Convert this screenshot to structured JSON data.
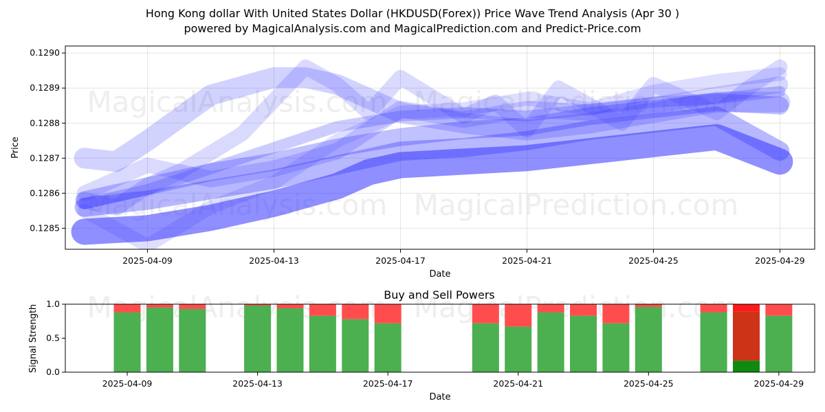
{
  "title_line1": "Hong Kong dollar With United States Dollar (HKDUSD(Forex)) Price Wave Trend Analysis (Apr 30 )",
  "title_line2": "powered by MagicalAnalysis.com and MagicalPrediction.com and Predict-Price.com",
  "watermarks": [
    "MagicalAnalysis.com",
    "MagicalPrediction.com"
  ],
  "chart_data": [
    {
      "type": "line",
      "name": "price-wave-trend",
      "xlabel": "Date",
      "ylabel": "Price",
      "xlim": [
        "2025-04-06.4",
        "2025-04-30.1"
      ],
      "ylim": [
        0.12844,
        0.12902
      ],
      "x_ticks": [
        "2025-04-09",
        "2025-04-13",
        "2025-04-17",
        "2025-04-21",
        "2025-04-25",
        "2025-04-29"
      ],
      "y_ticks": [
        "0.1285",
        "0.1286",
        "0.1287",
        "0.1288",
        "0.1289",
        "0.1290"
      ],
      "grid": true,
      "series": [
        {
          "name": "wave-1",
          "width": 38,
          "opacity": 0.55,
          "x": [
            "2025-04-07",
            "2025-04-09",
            "2025-04-11",
            "2025-04-13",
            "2025-04-15",
            "2025-04-16",
            "2025-04-17",
            "2025-04-19",
            "2025-04-21",
            "2025-04-23",
            "2025-04-25",
            "2025-04-27",
            "2025-04-29"
          ],
          "y": [
            0.12849,
            0.1285,
            0.12853,
            0.12857,
            0.12862,
            0.12866,
            0.12868,
            0.12869,
            0.1287,
            0.12872,
            0.12874,
            0.12876,
            0.12869
          ]
        },
        {
          "name": "wave-2",
          "width": 28,
          "opacity": 0.35,
          "x": [
            "2025-04-07",
            "2025-04-09",
            "2025-04-11",
            "2025-04-13",
            "2025-04-15",
            "2025-04-16",
            "2025-04-17",
            "2025-04-19",
            "2025-04-21",
            "2025-04-23",
            "2025-04-25",
            "2025-04-27",
            "2025-04-29"
          ],
          "y": [
            0.12856,
            0.12858,
            0.12861,
            0.12864,
            0.12868,
            0.1287,
            0.12872,
            0.12873,
            0.12875,
            0.12878,
            0.1288,
            0.12882,
            0.12872
          ]
        },
        {
          "name": "wave-3",
          "width": 26,
          "opacity": 0.3,
          "x": [
            "2025-04-07",
            "2025-04-09",
            "2025-04-11",
            "2025-04-13",
            "2025-04-15",
            "2025-04-17",
            "2025-04-19",
            "2025-04-21",
            "2025-04-23",
            "2025-04-25",
            "2025-04-27",
            "2025-04-29"
          ],
          "y": [
            0.12858,
            0.12862,
            0.12866,
            0.12869,
            0.12873,
            0.12876,
            0.12878,
            0.12879,
            0.12882,
            0.12884,
            0.12886,
            0.12885
          ]
        },
        {
          "name": "wave-4",
          "width": 30,
          "opacity": 0.22,
          "x": [
            "2025-04-07",
            "2025-04-08",
            "2025-04-09",
            "2025-04-11",
            "2025-04-13",
            "2025-04-14",
            "2025-04-15",
            "2025-04-16",
            "2025-04-17",
            "2025-04-19",
            "2025-04-21",
            "2025-04-23",
            "2025-04-25",
            "2025-04-27",
            "2025-04-29"
          ],
          "y": [
            0.1287,
            0.12869,
            0.12875,
            0.12888,
            0.12893,
            0.12893,
            0.12891,
            0.12887,
            0.12883,
            0.1288,
            0.12878,
            0.1288,
            0.12883,
            0.12886,
            0.12886
          ]
        },
        {
          "name": "wave-5",
          "width": 22,
          "opacity": 0.18,
          "x": [
            "2025-04-07",
            "2025-04-09",
            "2025-04-10",
            "2025-04-12",
            "2025-04-14",
            "2025-04-15",
            "2025-04-16",
            "2025-04-17",
            "2025-04-19",
            "2025-04-20",
            "2025-04-21",
            "2025-04-22",
            "2025-04-24",
            "2025-04-25",
            "2025-04-27",
            "2025-04-28",
            "2025-04-29"
          ],
          "y": [
            0.1286,
            0.12868,
            0.12866,
            0.12877,
            0.12896,
            0.12891,
            0.12883,
            0.12893,
            0.12882,
            0.12886,
            0.12878,
            0.1289,
            0.1288,
            0.12891,
            0.12883,
            0.1289,
            0.12896
          ]
        },
        {
          "name": "wave-6",
          "width": 20,
          "opacity": 0.16,
          "x": [
            "2025-04-07",
            "2025-04-09",
            "2025-04-11",
            "2025-04-13",
            "2025-04-15",
            "2025-04-17",
            "2025-04-19",
            "2025-04-21",
            "2025-04-23",
            "2025-04-25",
            "2025-04-27",
            "2025-04-29"
          ],
          "y": [
            0.12855,
            0.12845,
            0.12856,
            0.12863,
            0.12875,
            0.12883,
            0.12884,
            0.12887,
            0.12884,
            0.12889,
            0.12892,
            0.12894
          ]
        },
        {
          "name": "wave-7",
          "width": 24,
          "opacity": 0.2,
          "x": [
            "2025-04-07",
            "2025-04-08",
            "2025-04-09",
            "2025-04-10",
            "2025-04-11",
            "2025-04-13",
            "2025-04-15",
            "2025-04-16",
            "2025-04-17",
            "2025-04-19",
            "2025-04-21",
            "2025-04-23",
            "2025-04-25",
            "2025-04-27",
            "2025-04-29"
          ],
          "y": [
            0.12858,
            0.12856,
            0.12862,
            0.12866,
            0.12864,
            0.12867,
            0.12872,
            0.12878,
            0.12884,
            0.12881,
            0.12884,
            0.12883,
            0.12885,
            0.12888,
            0.12891
          ]
        },
        {
          "name": "wave-8",
          "width": 16,
          "opacity": 0.25,
          "x": [
            "2025-04-07",
            "2025-04-09",
            "2025-04-11",
            "2025-04-13",
            "2025-04-15",
            "2025-04-17",
            "2025-04-19",
            "2025-04-21",
            "2025-04-23",
            "2025-04-25",
            "2025-04-27",
            "2025-04-29"
          ],
          "y": [
            0.12857,
            0.12861,
            0.12867,
            0.12873,
            0.12879,
            0.12882,
            0.12883,
            0.12882,
            0.12884,
            0.12886,
            0.12887,
            0.12889
          ]
        }
      ]
    },
    {
      "type": "bar",
      "name": "buy-and-sell-powers",
      "title": "Buy and Sell Powers",
      "xlabel": "Date",
      "ylabel": "Signal Strength",
      "ylim": [
        0,
        1
      ],
      "y_ticks": [
        "0.0",
        "0.5",
        "1.0"
      ],
      "x_ticks": [
        "2025-04-09",
        "2025-04-13",
        "2025-04-17",
        "2025-04-21",
        "2025-04-25",
        "2025-04-29"
      ],
      "grid": false,
      "colors": {
        "buy": "#4caf50",
        "sell": "#ff4d4d",
        "buy_strong": "#0f8a0f",
        "sell_strong": "#cc3317",
        "sell_top": "#ff1a1a"
      },
      "dates": [
        "2025-04-09",
        "2025-04-10",
        "2025-04-11",
        "2025-04-13",
        "2025-04-14",
        "2025-04-15",
        "2025-04-16",
        "2025-04-17",
        "2025-04-20",
        "2025-04-21",
        "2025-04-22",
        "2025-04-23",
        "2025-04-24",
        "2025-04-25",
        "2025-04-27",
        "2025-04-28",
        "2025-04-29"
      ],
      "buy": [
        0.88,
        0.95,
        0.93,
        0.98,
        0.94,
        0.83,
        0.78,
        0.72,
        0.72,
        0.67,
        0.88,
        0.83,
        0.72,
        0.96,
        0.88,
        0.17,
        0.83
      ],
      "strong_sell_portion": [
        0,
        0,
        0,
        0,
        0,
        0,
        0,
        0,
        0,
        0,
        0,
        0,
        0,
        0,
        0,
        0.72,
        0
      ]
    }
  ]
}
